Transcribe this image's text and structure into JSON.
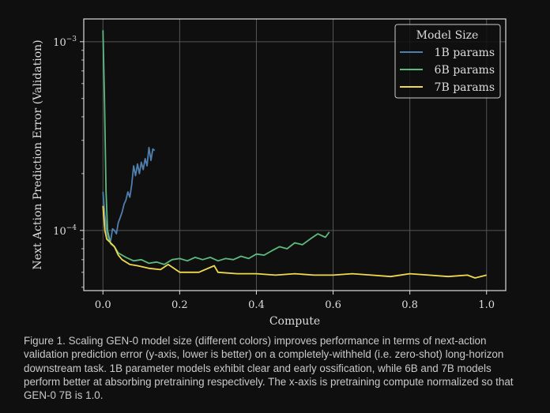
{
  "chart_data": {
    "type": "line",
    "xlabel": "Compute",
    "ylabel": "Next Action Prediction Error (Validation)",
    "xlim": [
      -0.05,
      1.05
    ],
    "ylim": [
      4.8e-05,
      0.00132
    ],
    "yscale": "log",
    "grid": true,
    "x_ticks": [
      "0.0",
      "0.2",
      "0.4",
      "0.6",
      "0.8",
      "1.0"
    ],
    "x_tick_values": [
      0,
      0.2,
      0.4,
      0.6,
      0.8,
      1.0
    ],
    "y_ticks": [
      {
        "base": "10",
        "exp": "−3",
        "value": 0.001
      },
      {
        "base": "10",
        "exp": "−4",
        "value": 0.0001
      }
    ],
    "legend": {
      "title": "Model Size",
      "placement": "top-right"
    },
    "series": [
      {
        "name": "1B params",
        "color": "#4f7faf",
        "x": [
          0,
          0.005,
          0.01,
          0.015,
          0.02,
          0.025,
          0.03,
          0.035,
          0.04,
          0.045,
          0.05,
          0.055,
          0.06,
          0.065,
          0.07,
          0.075,
          0.08,
          0.085,
          0.09,
          0.095,
          0.1,
          0.105,
          0.11,
          0.115,
          0.12,
          0.125,
          0.13,
          0.135
        ],
        "y": [
          0.00016,
          0.00012,
          9.8e-05,
          9e-05,
          8.8e-05,
          0.000102,
          0.0001,
          9.6e-05,
          0.00011,
          0.000117,
          0.000125,
          0.000138,
          0.000145,
          0.00016,
          0.00015,
          0.000175,
          0.00022,
          0.000195,
          0.000225,
          0.0002,
          0.00023,
          0.00021,
          0.00024,
          0.00022,
          0.000275,
          0.000235,
          0.00027,
          0.000265
        ]
      },
      {
        "name": "6B params",
        "color": "#5cba7d",
        "x": [
          0,
          0.004,
          0.008,
          0.012,
          0.02,
          0.03,
          0.04,
          0.05,
          0.06,
          0.08,
          0.1,
          0.12,
          0.14,
          0.16,
          0.18,
          0.2,
          0.22,
          0.24,
          0.26,
          0.28,
          0.3,
          0.32,
          0.34,
          0.36,
          0.38,
          0.4,
          0.42,
          0.44,
          0.46,
          0.48,
          0.5,
          0.52,
          0.54,
          0.56,
          0.58,
          0.59
        ],
        "y": [
          0.00115,
          0.0005,
          0.00016,
          0.0001,
          8.5e-05,
          8.2e-05,
          7.6e-05,
          7.4e-05,
          7.2e-05,
          6.9e-05,
          7e-05,
          6.7e-05,
          6.8e-05,
          6.6e-05,
          7e-05,
          7.1e-05,
          6.9e-05,
          7.2e-05,
          7e-05,
          7.2e-05,
          6.9e-05,
          7.1e-05,
          7e-05,
          7.3e-05,
          7.1e-05,
          7.5e-05,
          7.4e-05,
          7.8e-05,
          8.2e-05,
          8e-05,
          8.6e-05,
          8.4e-05,
          9e-05,
          9.6e-05,
          9.2e-05,
          9.8e-05
        ]
      },
      {
        "name": "7B params",
        "color": "#f0d84f",
        "x": [
          0,
          0.005,
          0.01,
          0.02,
          0.03,
          0.04,
          0.05,
          0.07,
          0.09,
          0.12,
          0.15,
          0.17,
          0.2,
          0.25,
          0.29,
          0.3,
          0.35,
          0.4,
          0.45,
          0.5,
          0.55,
          0.6,
          0.65,
          0.7,
          0.75,
          0.8,
          0.85,
          0.9,
          0.95,
          0.97,
          1.0
        ],
        "y": [
          0.000135,
          0.0001,
          9e-05,
          8.6e-05,
          8.2e-05,
          7.4e-05,
          7e-05,
          6.6e-05,
          6.5e-05,
          6.3e-05,
          6.2e-05,
          6.6e-05,
          6e-05,
          6e-05,
          6.5e-05,
          6e-05,
          5.9e-05,
          5.9e-05,
          5.8e-05,
          5.9e-05,
          5.8e-05,
          5.8e-05,
          5.9e-05,
          5.8e-05,
          5.7e-05,
          5.9e-05,
          5.8e-05,
          5.7e-05,
          5.8e-05,
          5.6e-05,
          5.8e-05
        ]
      }
    ]
  },
  "caption": "Figure 1. Scaling GEN-0 model size (different colors) improves performance in terms of next-action validation prediction error (y-axis, lower is better) on a completely-withheld (i.e. zero-shot) long-horizon downstream task. 1B parameter models exhibit clear and early ossification, while 6B and 7B models perform better at absorbing pretraining respectively. The x-axis is pretraining compute normalized so that GEN-0 7B is 1.0."
}
